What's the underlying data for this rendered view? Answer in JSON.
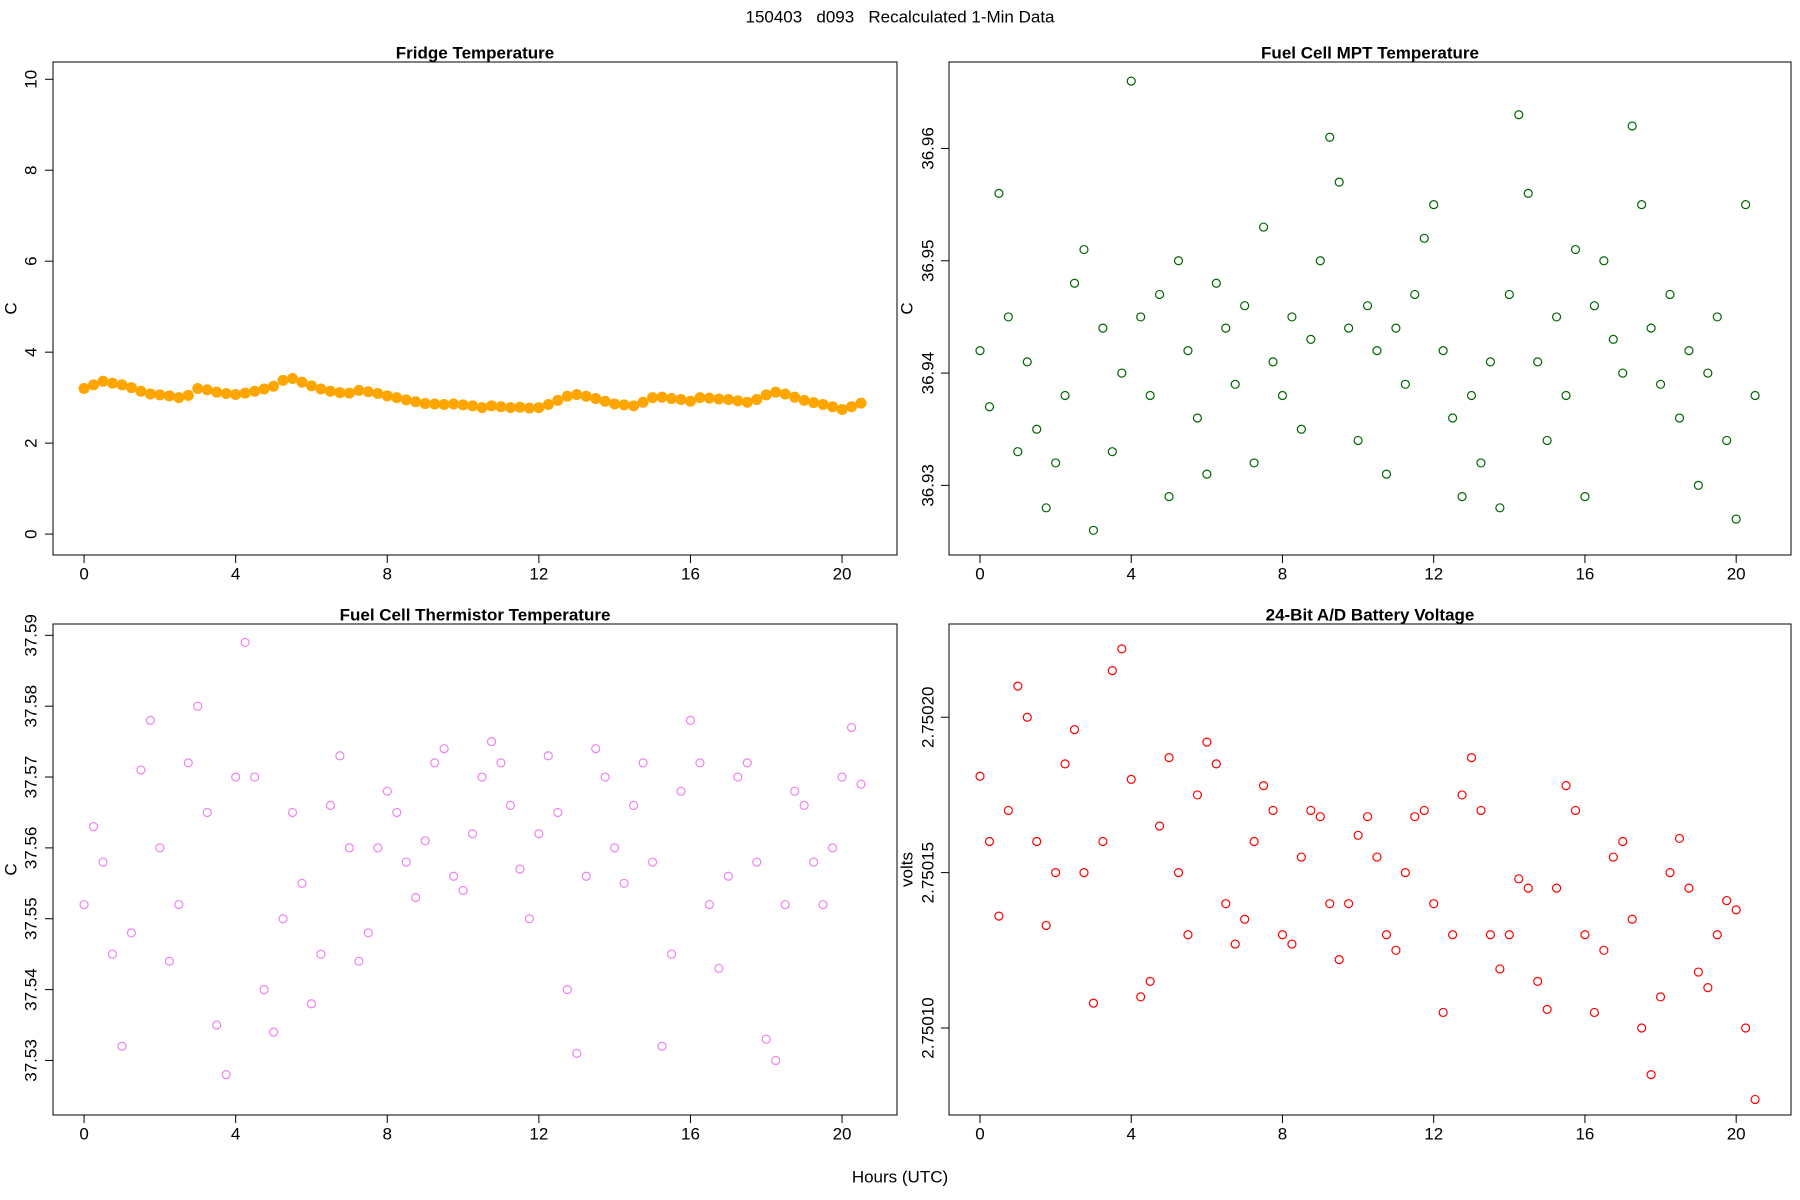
{
  "title": "150403   d093   Recalculated 1-Min Data",
  "xlabel": "Hours (UTC)",
  "chart_data": [
    {
      "type": "scatter",
      "title": "Fridge Temperature",
      "ylabel": "C",
      "color": "#FFA500",
      "xlim": [
        -0.82,
        21.45
      ],
      "xticks": [
        0,
        4,
        8,
        12,
        16,
        20
      ],
      "ylim": [
        -0.46,
        10.38
      ],
      "yticks": [
        0,
        2,
        4,
        6,
        8,
        10
      ],
      "x": [
        0,
        0.25,
        0.5,
        0.75,
        1,
        1.25,
        1.5,
        1.75,
        2,
        2.25,
        2.5,
        2.75,
        3,
        3.25,
        3.5,
        3.75,
        4,
        4.25,
        4.5,
        4.75,
        5,
        5.25,
        5.5,
        5.75,
        6,
        6.25,
        6.5,
        6.75,
        7,
        7.25,
        7.5,
        7.75,
        8,
        8.25,
        8.5,
        8.75,
        9,
        9.25,
        9.5,
        9.75,
        10,
        10.25,
        10.5,
        10.75,
        11,
        11.25,
        11.5,
        11.75,
        12,
        12.25,
        12.5,
        12.75,
        13,
        13.25,
        13.5,
        13.75,
        14,
        14.25,
        14.5,
        14.75,
        15,
        15.25,
        15.5,
        15.75,
        16,
        16.25,
        16.5,
        16.75,
        17,
        17.25,
        17.5,
        17.75,
        18,
        18.25,
        18.5,
        18.75,
        19,
        19.25,
        19.5,
        19.75,
        20,
        20.25,
        20.5
      ],
      "values": [
        3.2,
        3.28,
        3.36,
        3.32,
        3.28,
        3.22,
        3.14,
        3.08,
        3.06,
        3.04,
        3.0,
        3.05,
        3.2,
        3.17,
        3.12,
        3.09,
        3.07,
        3.1,
        3.14,
        3.19,
        3.25,
        3.38,
        3.42,
        3.34,
        3.26,
        3.19,
        3.14,
        3.11,
        3.1,
        3.16,
        3.13,
        3.09,
        3.04,
        3.0,
        2.95,
        2.91,
        2.87,
        2.86,
        2.85,
        2.86,
        2.84,
        2.82,
        2.78,
        2.82,
        2.8,
        2.78,
        2.79,
        2.77,
        2.78,
        2.85,
        2.94,
        3.03,
        3.07,
        3.03,
        2.98,
        2.92,
        2.86,
        2.84,
        2.82,
        2.9,
        3.0,
        3.01,
        2.98,
        2.96,
        2.92,
        3.0,
        2.99,
        2.97,
        2.96,
        2.93,
        2.9,
        2.96,
        3.06,
        3.12,
        3.08,
        3.01,
        2.94,
        2.89,
        2.85,
        2.8,
        2.74,
        2.8,
        2.88
      ]
    },
    {
      "type": "scatter",
      "title": "Fuel Cell MPT Temperature",
      "ylabel": "C",
      "color": "#006400",
      "xlim": [
        -0.82,
        21.45
      ],
      "xticks": [
        0,
        4,
        8,
        12,
        16,
        20
      ],
      "ylim": [
        36.9238,
        36.9677
      ],
      "yticks": [
        36.93,
        36.94,
        36.95,
        36.96
      ],
      "x": [
        0,
        0.25,
        0.5,
        0.75,
        1,
        1.25,
        1.5,
        1.75,
        2,
        2.25,
        2.5,
        2.75,
        3,
        3.25,
        3.5,
        3.75,
        4,
        4.25,
        4.5,
        4.75,
        5,
        5.25,
        5.5,
        5.75,
        6,
        6.25,
        6.5,
        6.75,
        7,
        7.25,
        7.5,
        7.75,
        8,
        8.25,
        8.5,
        8.75,
        9,
        9.25,
        9.5,
        9.75,
        10,
        10.25,
        10.5,
        10.75,
        11,
        11.25,
        11.5,
        11.75,
        12,
        12.25,
        12.5,
        12.75,
        13,
        13.25,
        13.5,
        13.75,
        14,
        14.25,
        14.5,
        14.75,
        15,
        15.25,
        15.5,
        15.75,
        16,
        16.25,
        16.5,
        16.75,
        17,
        17.25,
        17.5,
        17.75,
        18,
        18.25,
        18.5,
        18.75,
        19,
        19.25,
        19.5,
        19.75,
        20,
        20.25,
        20.5
      ],
      "values": [
        36.942,
        36.937,
        36.956,
        36.945,
        36.933,
        36.941,
        36.935,
        36.928,
        36.932,
        36.938,
        36.948,
        36.951,
        36.926,
        36.944,
        36.933,
        36.94,
        36.966,
        36.945,
        36.938,
        36.947,
        36.929,
        36.95,
        36.942,
        36.936,
        36.931,
        36.948,
        36.944,
        36.939,
        36.946,
        36.932,
        36.953,
        36.941,
        36.938,
        36.945,
        36.935,
        36.943,
        36.95,
        36.961,
        36.957,
        36.944,
        36.934,
        36.946,
        36.942,
        36.931,
        36.944,
        36.939,
        36.947,
        36.952,
        36.955,
        36.942,
        36.936,
        36.929,
        36.938,
        36.932,
        36.941,
        36.928,
        36.947,
        36.963,
        36.956,
        36.941,
        36.934,
        36.945,
        36.938,
        36.951,
        36.929,
        36.946,
        36.95,
        36.943,
        36.94,
        36.962,
        36.955,
        36.944,
        36.939,
        36.947,
        36.936,
        36.942,
        36.93,
        36.94,
        36.945,
        36.934,
        36.927,
        36.955,
        36.938
      ]
    },
    {
      "type": "scatter",
      "title": "Fuel Cell Thermistor Temperature",
      "ylabel": "C",
      "color": "#EE82EE",
      "xlim": [
        -0.82,
        21.45
      ],
      "xticks": [
        0,
        4,
        8,
        12,
        16,
        20
      ],
      "ylim": [
        37.5223,
        37.5916
      ],
      "yticks": [
        37.53,
        37.54,
        37.55,
        37.56,
        37.57,
        37.58,
        37.59
      ],
      "x": [
        0,
        0.25,
        0.5,
        0.75,
        1,
        1.25,
        1.5,
        1.75,
        2,
        2.25,
        2.5,
        2.75,
        3,
        3.25,
        3.5,
        3.75,
        4,
        4.25,
        4.5,
        4.75,
        5,
        5.25,
        5.5,
        5.75,
        6,
        6.25,
        6.5,
        6.75,
        7,
        7.25,
        7.5,
        7.75,
        8,
        8.25,
        8.5,
        8.75,
        9,
        9.25,
        9.5,
        9.75,
        10,
        10.25,
        10.5,
        10.75,
        11,
        11.25,
        11.5,
        11.75,
        12,
        12.25,
        12.5,
        12.75,
        13,
        13.25,
        13.5,
        13.75,
        14,
        14.25,
        14.5,
        14.75,
        15,
        15.25,
        15.5,
        15.75,
        16,
        16.25,
        16.5,
        16.75,
        17,
        17.25,
        17.5,
        17.75,
        18,
        18.25,
        18.5,
        18.75,
        19,
        19.25,
        19.5,
        19.75,
        20,
        20.25,
        20.5
      ],
      "values": [
        37.552,
        37.563,
        37.558,
        37.545,
        37.532,
        37.548,
        37.571,
        37.578,
        37.56,
        37.544,
        37.552,
        37.572,
        37.58,
        37.565,
        37.535,
        37.528,
        37.57,
        37.589,
        37.57,
        37.54,
        37.534,
        37.55,
        37.565,
        37.555,
        37.538,
        37.545,
        37.566,
        37.573,
        37.56,
        37.544,
        37.548,
        37.56,
        37.568,
        37.565,
        37.558,
        37.553,
        37.561,
        37.572,
        37.574,
        37.556,
        37.554,
        37.562,
        37.57,
        37.575,
        37.572,
        37.566,
        37.557,
        37.55,
        37.562,
        37.573,
        37.565,
        37.54,
        37.531,
        37.556,
        37.574,
        37.57,
        37.56,
        37.555,
        37.566,
        37.572,
        37.558,
        37.532,
        37.545,
        37.568,
        37.578,
        37.572,
        37.552,
        37.543,
        37.556,
        37.57,
        37.572,
        37.558,
        37.533,
        37.53,
        37.552,
        37.568,
        37.566,
        37.558,
        37.552,
        37.56,
        37.57,
        37.577,
        37.569
      ]
    },
    {
      "type": "scatter",
      "title": "24-Bit A/D Battery Voltage",
      "ylabel": "volts",
      "color": "#FF0000",
      "xlim": [
        -0.82,
        21.45
      ],
      "xticks": [
        0,
        4,
        8,
        12,
        16,
        20
      ],
      "ylim": [
        2.750072,
        2.75023
      ],
      "yticks": [
        {
          "value": 2.7501,
          "label": "2.75010"
        },
        2.75015,
        {
          "value": 2.7502,
          "label": "2.75020"
        }
      ],
      "x": [
        0,
        0.25,
        0.5,
        0.75,
        1,
        1.25,
        1.5,
        1.75,
        2,
        2.25,
        2.5,
        2.75,
        3,
        3.25,
        3.5,
        3.75,
        4,
        4.25,
        4.5,
        4.75,
        5,
        5.25,
        5.5,
        5.75,
        6,
        6.25,
        6.5,
        6.75,
        7,
        7.25,
        7.5,
        7.75,
        8,
        8.25,
        8.5,
        8.75,
        9,
        9.25,
        9.5,
        9.75,
        10,
        10.25,
        10.5,
        10.75,
        11,
        11.25,
        11.5,
        11.75,
        12,
        12.25,
        12.5,
        12.75,
        13,
        13.25,
        13.5,
        13.75,
        14,
        14.25,
        14.5,
        14.75,
        15,
        15.25,
        15.5,
        15.75,
        16,
        16.25,
        16.5,
        16.75,
        17,
        17.25,
        17.5,
        17.75,
        18,
        18.25,
        18.5,
        18.75,
        19,
        19.25,
        19.5,
        19.75,
        20,
        20.25,
        20.5
      ],
      "values": [
        2.750181,
        2.75016,
        2.750136,
        2.75017,
        2.75021,
        2.7502,
        2.75016,
        2.750133,
        2.75015,
        2.750185,
        2.750196,
        2.75015,
        2.750108,
        2.75016,
        2.750215,
        2.750222,
        2.75018,
        2.75011,
        2.750115,
        2.750165,
        2.750187,
        2.75015,
        2.75013,
        2.750175,
        2.750192,
        2.750185,
        2.75014,
        2.750127,
        2.750135,
        2.75016,
        2.750178,
        2.75017,
        2.75013,
        2.750127,
        2.750155,
        2.75017,
        2.750168,
        2.75014,
        2.750122,
        2.75014,
        2.750162,
        2.750168,
        2.750155,
        2.75013,
        2.750125,
        2.75015,
        2.750168,
        2.75017,
        2.75014,
        2.750105,
        2.75013,
        2.750175,
        2.750187,
        2.75017,
        2.75013,
        2.750119,
        2.75013,
        2.750148,
        2.750145,
        2.750115,
        2.750106,
        2.750145,
        2.750178,
        2.75017,
        2.75013,
        2.750105,
        2.750125,
        2.750155,
        2.75016,
        2.750135,
        2.7501,
        2.750085,
        2.75011,
        2.75015,
        2.750161,
        2.750145,
        2.750118,
        2.750113,
        2.75013,
        2.750141,
        2.750138,
        2.7501,
        2.750077
      ]
    }
  ]
}
